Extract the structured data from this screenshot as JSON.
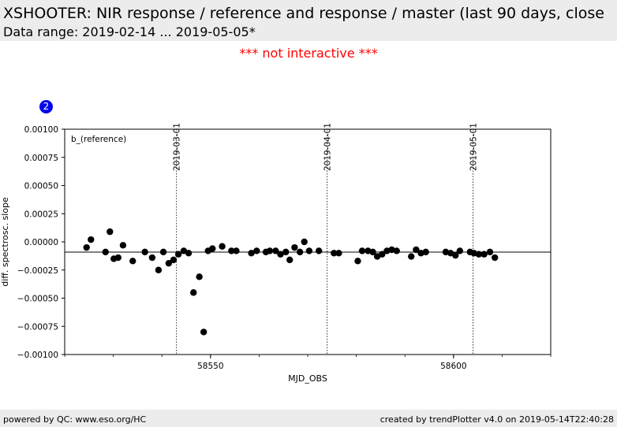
{
  "header": {
    "title": "XSHOOTER: NIR response / reference and response / master (last 90 days, close",
    "subtitle": "Data range: 2019-02-14 ... 2019-05-05*"
  },
  "notice": "*** not interactive ***",
  "badge": "2",
  "footer": {
    "left": "powered by QC: www.eso.org/HC",
    "right": "created by trendPlotter v4.0 on 2019-05-14T22:40:28"
  },
  "colors": {
    "points": "#000000",
    "notice": "#ff0000",
    "badge": "#0000ee",
    "band": "#ececec"
  },
  "chart_data": {
    "type": "scatter",
    "title": "",
    "xlabel": "MJD_OBS",
    "ylabel": "diff. spectrosc. slope",
    "panel_label": "b_(reference)",
    "xlim": [
      58520,
      58620
    ],
    "ylim": [
      -0.001,
      0.001
    ],
    "x_ticks": [
      58550,
      58600
    ],
    "y_ticks": [
      0.001,
      0.00075,
      0.0005,
      0.00025,
      0.0,
      -0.00025,
      -0.0005,
      -0.00075,
      -0.001
    ],
    "y_tick_labels": [
      "0.00100",
      "0.00075",
      "0.00050",
      "0.00025",
      "0.00000",
      "−0.00025",
      "−0.00050",
      "−0.00075",
      "−0.00100"
    ],
    "reference_line": -9.05e-05,
    "date_markers": [
      {
        "label": "2019-03-01",
        "x": 58543
      },
      {
        "label": "2019-04-01",
        "x": 58574
      },
      {
        "label": "2019-05-01",
        "x": 58604
      }
    ],
    "series": [
      {
        "x": [
          58524.5,
          58525.4,
          58528.4,
          58529.3,
          58530.1,
          58531.0,
          58532.0,
          58534.0,
          58536.5,
          58538.0,
          58539.3,
          58540.3,
          58541.4,
          58542.4,
          58543.4,
          58544.5,
          58545.5,
          58546.5,
          58547.7,
          58548.6,
          58549.5,
          58550.4,
          58552.4,
          58554.3,
          58555.3,
          58558.4,
          58559.5,
          58561.4,
          58562.2,
          58563.4,
          58564.4,
          58565.5,
          58566.3,
          58567.3,
          58568.4,
          58569.3,
          58570.3,
          58572.3,
          58575.4,
          58576.4,
          58580.3,
          58581.2,
          58582.4,
          58583.4,
          58584.3,
          58585.3,
          58586.3,
          58587.3,
          58588.3,
          58591.3,
          58592.3,
          58593.3,
          58594.3,
          58598.4,
          58599.4,
          58600.4,
          58601.3,
          58603.4,
          58604.2,
          58605.2,
          58606.3,
          58607.5,
          58608.5
        ],
        "y": [
          -5e-05,
          2e-05,
          -9e-05,
          9e-05,
          -0.00015,
          -0.00014,
          -3e-05,
          -0.00017,
          -9e-05,
          -0.00014,
          -0.00025,
          -9e-05,
          -0.00019,
          -0.00016,
          -0.00011,
          -8e-05,
          -0.0001,
          -0.00045,
          -0.00031,
          -0.0008,
          -8e-05,
          -6e-05,
          -4e-05,
          -8e-05,
          -8e-05,
          -0.0001,
          -8e-05,
          -9e-05,
          -8e-05,
          -8e-05,
          -0.00011,
          -9e-05,
          -0.00016,
          -5e-05,
          -9e-05,
          -0.0,
          -8e-05,
          -8e-05,
          -0.0001,
          -0.0001,
          -0.00017,
          -8e-05,
          -8e-05,
          -9e-05,
          -0.00013,
          -0.00011,
          -8e-05,
          -7e-05,
          -8e-05,
          -0.00013,
          -7e-05,
          -0.0001,
          -9e-05,
          -9e-05,
          -0.0001,
          -0.00012,
          -8e-05,
          -9e-05,
          -0.0001,
          -0.00011,
          -0.00011,
          -9e-05,
          -0.00014
        ]
      }
    ]
  }
}
